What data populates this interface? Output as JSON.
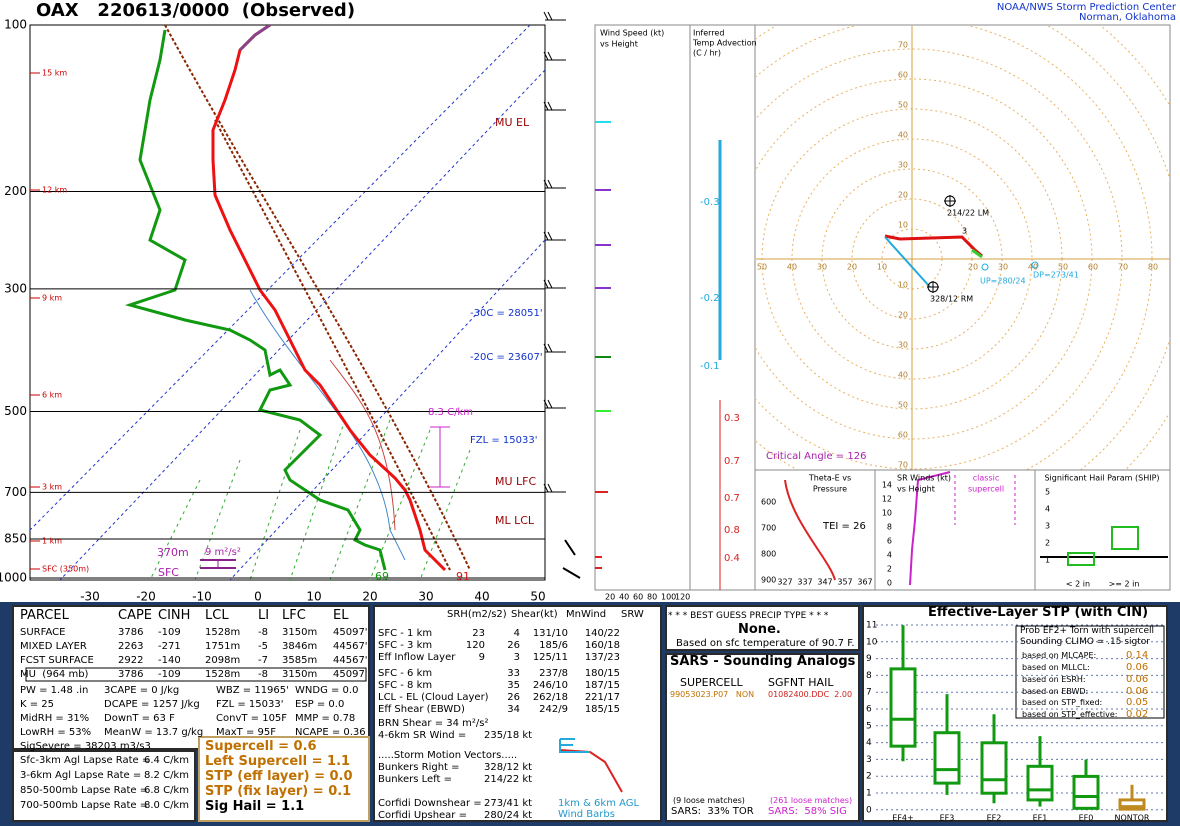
{
  "header": {
    "title": "OAX   220613/0000  (Observed)",
    "org": "NOAA/NWS Storm Prediction Center",
    "location": "Norman, Oklahoma"
  },
  "skewt": {
    "pressure_labels": [
      "100",
      "200",
      "300",
      "500",
      "700",
      "850",
      "1000"
    ],
    "height_labels": [
      "15 km",
      "12 km",
      "9 km",
      "6 km",
      "3 km",
      "1 km",
      "SFC (350m)"
    ],
    "temp_labels": [
      "-30",
      "-20",
      "-10",
      "0",
      "10",
      "20",
      "30",
      "40",
      "50"
    ],
    "annotations": {
      "mu_el": "MU EL",
      "m30c": "-30C = 28051'",
      "m20c": "-20C = 23607'",
      "lapse": "8.3 C/km",
      "fzl": "FZL = 15033'",
      "mu_lfc": "MU LFC",
      "ml_lcl": "ML LCL",
      "eil_top": "370m",
      "eil_srh": "9 m²/s²",
      "eil_bottom": "SFC",
      "sfc_td": "69",
      "sfc_t": "91"
    }
  },
  "wind_panel": {
    "title": [
      "Wind Speed (kt)",
      "vs Height"
    ],
    "scale": [
      "20",
      "40",
      "60",
      "80",
      "100",
      "120"
    ]
  },
  "advection": {
    "title": [
      "Inferred",
      "Temp Advection",
      "(C / hr)"
    ],
    "values": [
      "-0.3",
      "-0.2",
      "-0.1",
      "0.3",
      "0.7",
      "0.7",
      "0.8",
      "0.4"
    ]
  },
  "hodograph": {
    "x_labels": [
      "50",
      "40",
      "30",
      "20",
      "10",
      "20",
      "30",
      "40",
      "50",
      "60",
      "70",
      "80"
    ],
    "y_labels": [
      "70",
      "60",
      "50",
      "40",
      "30",
      "20",
      "10",
      "10",
      "20",
      "30",
      "40",
      "50",
      "60",
      "70"
    ],
    "point_label": "3",
    "lm": "214/22 LM",
    "rm": "328/12 RM",
    "up": "UP=280/24",
    "dp": "DP=273/41",
    "critical_angle": "Critical Angle = 126"
  },
  "theta_e": {
    "title": [
      "Theta-E vs",
      "Pressure"
    ],
    "tei": "TEI = 26",
    "y_labels": [
      "600",
      "700",
      "800",
      "900"
    ],
    "x_labels": [
      "327",
      "337",
      "347",
      "357",
      "367"
    ]
  },
  "sr_winds": {
    "title": [
      "SR Winds (kt)",
      "vs Height"
    ],
    "class": [
      "classic",
      "supercell"
    ],
    "y_labels": [
      "14",
      "12",
      "10",
      "8",
      "6",
      "4",
      "2",
      "0"
    ]
  },
  "ship": {
    "title": "Significant Hail Param (SHIP)",
    "y_labels": [
      "5",
      "4",
      "3",
      "2",
      "1"
    ],
    "x_labels": [
      "< 2 in",
      ">= 2 in"
    ]
  },
  "parcel_table": {
    "header": [
      "PARCEL",
      "CAPE",
      "CINH",
      "LCL",
      "LI",
      "LFC",
      "EL"
    ],
    "rows": [
      [
        "SURFACE",
        "3786",
        "-109",
        "1528m",
        "-8",
        "3150m",
        "45097'"
      ],
      [
        "MIXED LAYER",
        "2263",
        "-271",
        "1751m",
        "-5",
        "3846m",
        "44567'"
      ],
      [
        "FCST SURFACE",
        "2922",
        "-140",
        "2098m",
        "-7",
        "3585m",
        "44567'"
      ],
      [
        "MU  (964 mb)",
        "3786",
        "-109",
        "1528m",
        "-8",
        "3150m",
        "45097'"
      ]
    ]
  },
  "indices": [
    [
      "PW = 1.48 .in",
      "3CAPE = 0 J/kg",
      "WBZ = 11965'",
      "WNDG = 0.0"
    ],
    [
      "K = 25",
      "DCAPE = 1257 J/kg",
      "FZL = 15033'",
      "ESP = 0.0"
    ],
    [
      "MidRH = 31%",
      "DownT = 63 F",
      "ConvT = 105F",
      "MMP = 0.78"
    ],
    [
      "LowRH = 53%",
      "MeanW = 13.7 g/kg",
      "MaxT = 95F",
      "NCAPE = 0.36"
    ],
    [
      "SigSevere = 38203 m3/s3"
    ]
  ],
  "lapse_rates": [
    [
      "Sfc-3km Agl Lapse Rate =",
      "6.4 C/km"
    ],
    [
      "3-6km Agl Lapse Rate =",
      "8.2 C/km"
    ],
    [
      "850-500mb Lapse Rate =",
      "6.8 C/km"
    ],
    [
      "700-500mb Lapse Rate =",
      "8.0 C/km"
    ]
  ],
  "composite": [
    "Supercell = 0.6",
    "Left Supercell = 1.1",
    "STP (eff layer) = 0.0",
    "STP (fix layer) = 0.1",
    "Sig Hail = 1.1"
  ],
  "kinematics": {
    "header": [
      "SRH(m2/s2)",
      "Shear(kt)",
      "MnWind",
      "SRW"
    ],
    "rows_srh": [
      [
        "SFC - 1 km",
        "23",
        "4",
        "131/10",
        "140/22"
      ],
      [
        "SFC - 3 km",
        "120",
        "26",
        "185/6",
        "160/18"
      ],
      [
        "Eff Inflow Layer",
        "9",
        "3",
        "125/11",
        "137/23"
      ]
    ],
    "rows": [
      [
        "SFC - 6 km",
        "33",
        "237/8",
        "180/15"
      ],
      [
        "SFC - 8 km",
        "35",
        "246/10",
        "187/15"
      ],
      [
        "LCL - EL (Cloud Layer)",
        "26",
        "262/18",
        "221/17"
      ],
      [
        "Eff Shear (EBWD)",
        "34",
        "242/9",
        "185/15"
      ]
    ],
    "brn": "BRN Shear = 34 m²/s²",
    "sr46": [
      "4-6km SR Wind =",
      "235/18 kt"
    ],
    "storm_title": ".....Storm Motion Vectors.....",
    "storm_rows": [
      [
        "Bunkers Right =",
        "328/12 kt"
      ],
      [
        "Bunkers Left =",
        "214/22 kt"
      ],
      [
        "Corfidi Downshear =",
        "273/41 kt"
      ],
      [
        "Corfidi Upshear =",
        "280/24 kt"
      ]
    ],
    "barb_legend": [
      "1km & 6km AGL",
      "Wind Barbs"
    ]
  },
  "precip": {
    "title": "* * * BEST GUESS PRECIP TYPE * * *",
    "value": "None.",
    "note": "Based on sfc temperature of 90.7 F."
  },
  "sars": {
    "title": "SARS - Sounding Analogs",
    "columns": [
      "SUPERCELL",
      "SGFNT HAIL"
    ],
    "supercell_match": "99053023.P07   NON",
    "hail_match": "01082400.DDC  2.00",
    "supercell_count": "(9 loose matches)",
    "hail_count": "(261 loose matches)",
    "supercell_result": "SARS:  33% TOR",
    "hail_result": "SARS:  58% SIG"
  },
  "stp": {
    "title": "Effective-Layer STP (with CIN)",
    "prob": [
      "Prob EF2+ Torn with supercell",
      "Sounding CLIMO = .15 sigtor"
    ],
    "based": [
      [
        "based on MLCAPE:",
        "0.14"
      ],
      [
        "based on MLLCL:",
        "0.06"
      ],
      [
        "based on ESRH:",
        "0.06"
      ],
      [
        "based on EBWD:",
        "0.06"
      ]
    ],
    "based2": [
      [
        "based on STP_fixed:",
        "0.05"
      ],
      [
        "based on STP_effective:",
        "0.02"
      ]
    ],
    "y_labels": [
      "11",
      "10",
      "9",
      "8",
      "7",
      "6",
      "5",
      "4",
      "3",
      "2",
      "1",
      "0"
    ],
    "categories": [
      "EF4+",
      "EF3",
      "EF2",
      "EF1",
      "EF0",
      "NONTOR"
    ]
  }
}
